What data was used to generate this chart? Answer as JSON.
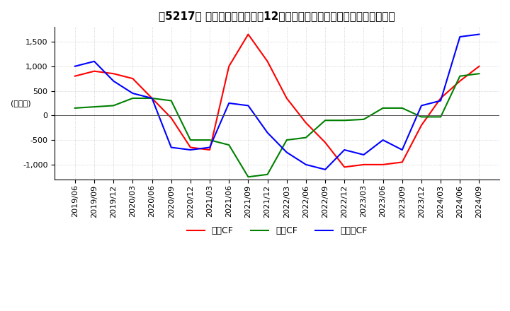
{
  "title_text": "【5217】 キャッシュフローの12か月移動合計の対前年同期増減額の推移",
  "ylabel": "(百万円)",
  "ylim": [
    -1300,
    1800
  ],
  "yticks": [
    -1000,
    -500,
    0,
    500,
    1000,
    1500
  ],
  "dates": [
    "2019/06",
    "2019/09",
    "2019/12",
    "2020/03",
    "2020/06",
    "2020/09",
    "2020/12",
    "2021/03",
    "2021/06",
    "2021/09",
    "2021/12",
    "2022/03",
    "2022/06",
    "2022/09",
    "2022/12",
    "2023/03",
    "2023/06",
    "2023/09",
    "2023/12",
    "2024/03",
    "2024/06",
    "2024/09"
  ],
  "operating_cf": [
    800,
    900,
    850,
    750,
    350,
    -50,
    -650,
    -700,
    1000,
    1650,
    1100,
    350,
    -150,
    -550,
    -1050,
    -1000,
    -1000,
    -950,
    -200,
    350,
    700,
    1000
  ],
  "investing_cf": [
    150,
    175,
    200,
    350,
    350,
    300,
    -500,
    -500,
    -600,
    -1250,
    -1200,
    -500,
    -450,
    -100,
    -100,
    -80,
    150,
    150,
    -30,
    -30,
    800,
    850
  ],
  "free_cf": [
    1000,
    1100,
    700,
    450,
    350,
    -650,
    -700,
    -650,
    250,
    200,
    -350,
    -750,
    -1000,
    -1100,
    -700,
    -800,
    -500,
    -700,
    200,
    300,
    1600,
    1650
  ],
  "colors": {
    "operating": "#ff0000",
    "investing": "#008000",
    "free": "#0000ff"
  },
  "legend_labels": [
    "営業CF",
    "投資CF",
    "フリーCF"
  ],
  "background_color": "#ffffff",
  "grid_color": "#aaaaaa",
  "title_fontsize": 11,
  "axis_fontsize": 8,
  "line_width": 1.5
}
